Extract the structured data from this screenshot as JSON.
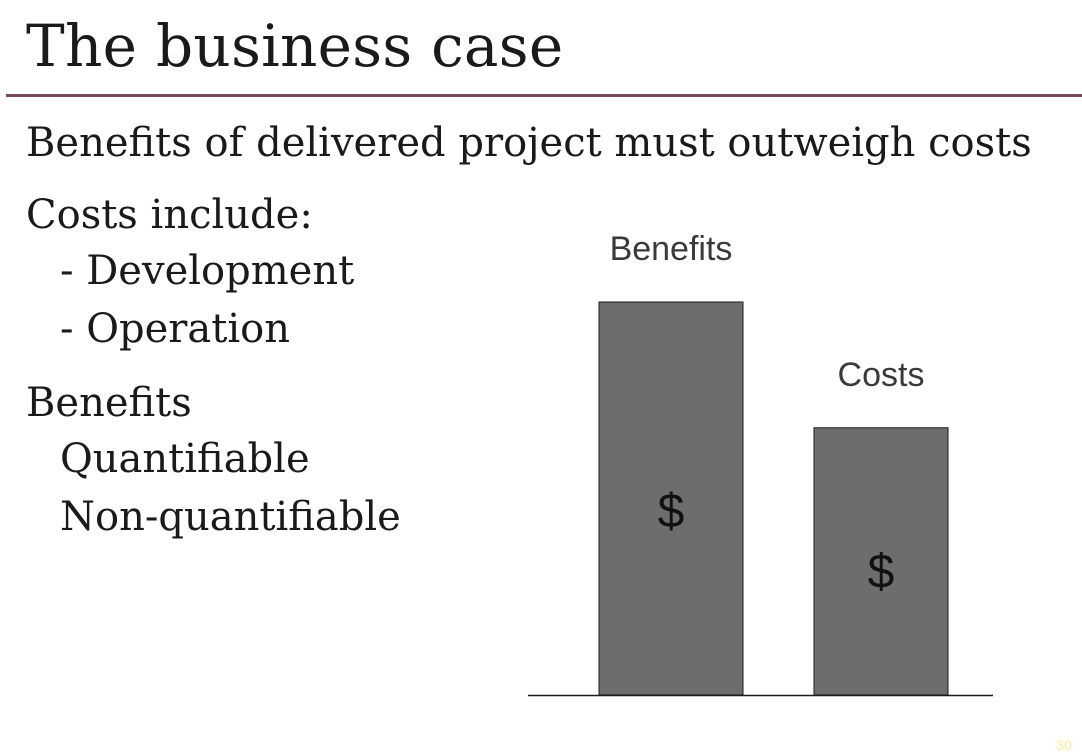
{
  "slide": {
    "title": "The business case",
    "subtitle": "Benefits of delivered project must outweigh costs",
    "costs_heading": "Costs include:",
    "costs_items": [
      "- Development",
      "- Operation"
    ],
    "benefits_heading": "Benefits",
    "benefits_items": [
      "Quantifiable",
      "Non-quantifiable"
    ],
    "page_number": "30",
    "accent_color": "#7a4b54"
  },
  "chart_data": {
    "type": "bar",
    "categories": [
      "Benefits",
      "Costs"
    ],
    "values": [
      100,
      68
    ],
    "data_labels": [
      "$",
      "$"
    ],
    "bar_color": "#6d6d70",
    "grid": false,
    "legend": "none"
  }
}
